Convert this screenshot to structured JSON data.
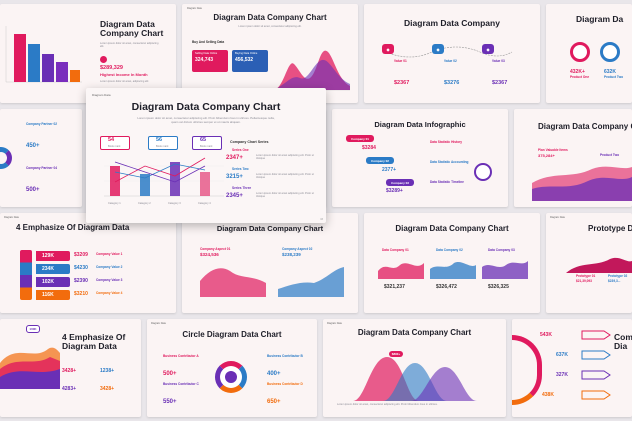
{
  "s1": {
    "title1": "Diagram Data",
    "title2": "Company Chart",
    "body": "Lorem ipsum dolor sit amet, consectetur adipiscing elit.",
    "value": "$289,329",
    "label": "Highest Income In Month",
    "note": "Lorem ipsum dolor sit amet, adipiscing elit"
  },
  "s2": {
    "tag": "Diagram Data",
    "title": "Diagram Data Company Chart",
    "body": "Lorem ipsum dolor sit amet, consectetur adipiscing elit.",
    "sub": "Buy And Selling Data",
    "c1": "Selling Data Online",
    "v1": "324,743",
    "c2": "Buying Data Online",
    "v2": "456,532"
  },
  "s3": {
    "title": "Diagram Data Company",
    "v1": "$2367",
    "v2": "$3276",
    "v3": "$2367",
    "l1": "Value 01",
    "l2": "Value 02",
    "l3": "Value 03"
  },
  "s4": {
    "title": "Diagram Da",
    "v1": "432K+",
    "l1": "Product One",
    "v2": "632K",
    "l2": "Product Two"
  },
  "s5": {
    "t1": "Company Partner 02",
    "v1": "450+",
    "t2": "Company Partner 04",
    "v2": "500+"
  },
  "s6": {
    "tag": "Diagram Data",
    "title": "Diagram Data Company Chart",
    "body": "Lorem ipsum dolor sit amet, consectetur adipiscing elit. Proin bibendum risus in ultrices. Pellentesque nulla, quam vel dictum ultricies semper et ut mauris aliquam.",
    "k1": "54",
    "k2": "56",
    "k3": "65",
    "klabel": "Book mark",
    "series_title": "Company Chart Series",
    "series": [
      {
        "name": "Series One",
        "value": "2347+",
        "color": "#e01a5e"
      },
      {
        "name": "Series Two",
        "value": "3215+",
        "color": "#2b7bc6"
      },
      {
        "name": "Series Three",
        "value": "2345+",
        "color": "#6a2fb5"
      }
    ],
    "series_note": "Lorem ipsum dolor sit amet adipiscing elit. Proin ut tristique",
    "cats": [
      "Category 1",
      "Category 2",
      "Category 3",
      "Category 4"
    ],
    "page": "03"
  },
  "s7": {
    "title": "Diagram Data Infographic",
    "items": [
      {
        "name": "Company 01",
        "value": "$3284",
        "color": "#e01a5e"
      },
      {
        "name": "Company 02",
        "value": "2377+",
        "color": "#2b7bc6"
      },
      {
        "name": "Company 03",
        "value": "$3289+",
        "color": "#6a2fb5"
      }
    ],
    "notes": [
      "Data Statistic History",
      "Data Statistic Accounting",
      "Data Statistic Timeline"
    ]
  },
  "s8": {
    "title": "Diagram Data Company Ch",
    "tag1": "Plan Valuable Items",
    "v1": "375,284+",
    "tag2": "Product Two"
  },
  "s9": {
    "tag": "Diagram Data",
    "title": "4 Emphasize Of Diagram Data",
    "rows": [
      {
        "k": "129K",
        "v": "$3209",
        "n": "Company Value 1",
        "c": "#e01a5e"
      },
      {
        "k": "234K",
        "v": "$4230",
        "n": "Company Value 2",
        "c": "#2b7bc6"
      },
      {
        "k": "102K",
        "v": "$2390",
        "n": "Company Value 3",
        "c": "#6a2fb5"
      },
      {
        "k": "116K",
        "v": "$3210",
        "n": "Company Value 4",
        "c": "#f26c0d"
      }
    ]
  },
  "s10": {
    "title": "Diagram Data Company Chart",
    "a1": "Company Aspect 01",
    "v1": "$324,536",
    "a2": "Company Aspect 02",
    "v2": "$238,239"
  },
  "s11": {
    "title": "Diagram Data Company Chart",
    "c1": "Data Company 01",
    "c2": "Data Company 02",
    "c3": "Data Company 03",
    "v1": "$321,237",
    "v2": "$326,472",
    "v3": "$326,325"
  },
  "s12": {
    "tag": "Diagram Data",
    "title": "Prototype D",
    "p1": "Prototype 01",
    "v1": "$21,39,093",
    "p2": "Prototype 02",
    "v2": "$239,3..."
  },
  "s13": {
    "title1": "4 Emphasize Of",
    "title2": "Diagram Data",
    "badge": "100K",
    "v1": "3428+",
    "v2": "1238+",
    "v3": "4283+",
    "v4": "3428+"
  },
  "s14": {
    "tag": "Diagram Data",
    "title": "Circle Diagram Data Chart",
    "b1": "Business Contributor A",
    "v1": "500+",
    "b2": "Business Contributor B",
    "v2": "400+",
    "b3": "Business Contributor C",
    "v3": "550+",
    "b4": "Business Contributor D",
    "v4": "650+"
  },
  "s15": {
    "tag": "Diagram Data",
    "title": "Diagram Data Company Chart",
    "badge": "$890+",
    "body": "Lorem ipsum dolor sit amet, consectetur adipiscing elit. Proin bibendum risus in ultrices."
  },
  "s16": {
    "title1": "Com",
    "title2": "Dia",
    "v1": "543K",
    "v2": "637K",
    "v3": "327K",
    "v4": "438K"
  }
}
